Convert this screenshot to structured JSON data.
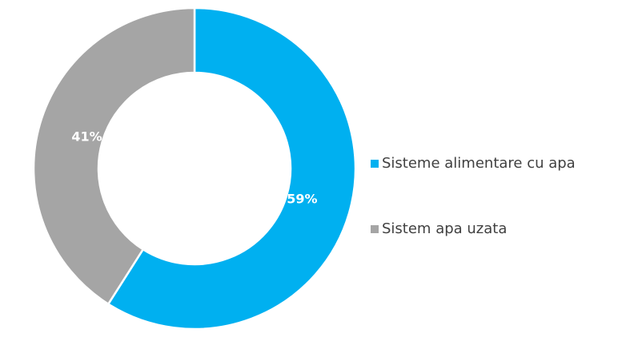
{
  "chart_data": {
    "type": "donut",
    "categories": [
      "Sisteme alimentare cu apa",
      "Sistem apa uzata"
    ],
    "values": [
      59,
      41
    ],
    "value_labels": [
      "59%",
      "41%"
    ],
    "colors": [
      "#00b0f0",
      "#a5a5a5"
    ],
    "legend": "right"
  }
}
